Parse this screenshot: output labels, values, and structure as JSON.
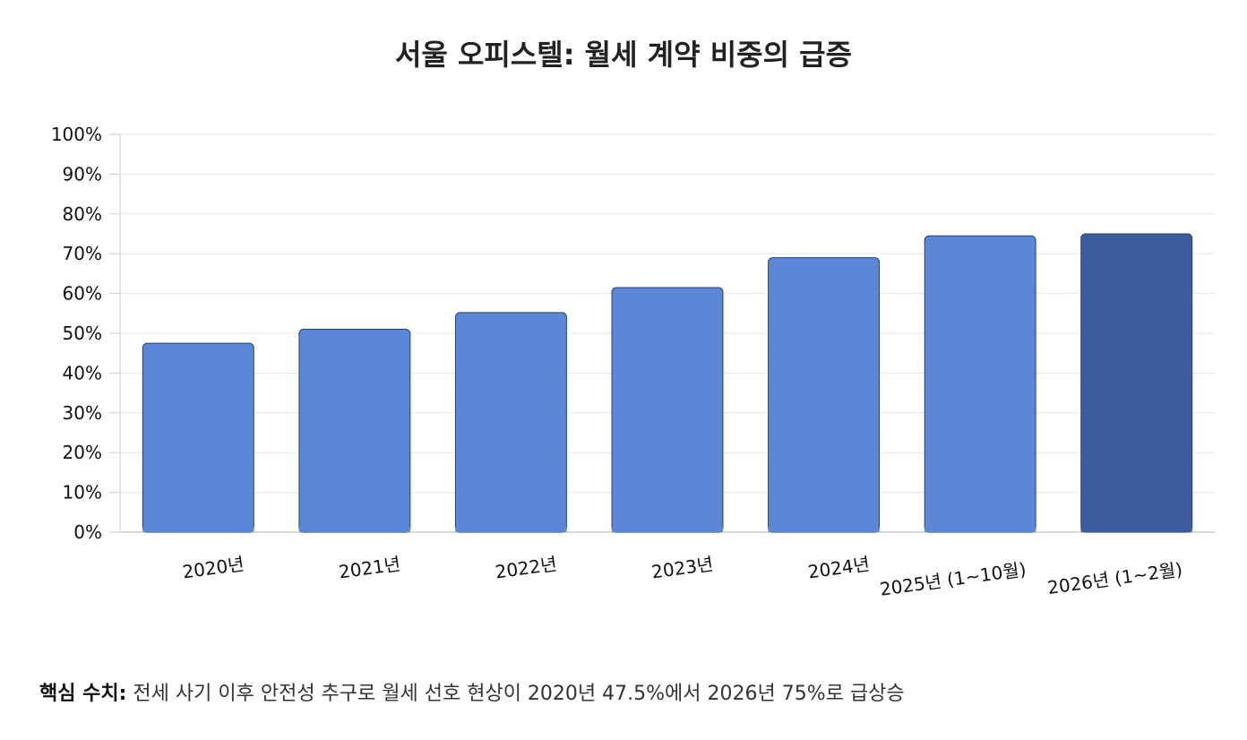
{
  "page": {
    "title": "서울 오피스텔: 월세 계약 비중의 급증"
  },
  "footer": {
    "label": "핵심 수치:",
    "text": "전세 사기 이후 안전성 추구로 월세 선호 현상이 2020년 47.5%에서 2026년 75%로 급상승"
  },
  "chart_data": {
    "type": "bar",
    "title": "서울 오피스텔: 월세 계약 비중의 급증",
    "xlabel": "",
    "ylabel": "",
    "categories": [
      "2020년",
      "2021년",
      "2022년",
      "2023년",
      "2024년",
      "2025년 (1~10월)",
      "2026년 (1~2월)"
    ],
    "values": [
      47.5,
      51,
      55.2,
      61.5,
      69,
      74.5,
      75
    ],
    "ylim": [
      0,
      100
    ],
    "yticks": [
      "0%",
      "10%",
      "20%",
      "30%",
      "40%",
      "50%",
      "60%",
      "70%",
      "80%",
      "90%",
      "100%"
    ],
    "grid": true,
    "legend": "none",
    "colors": {
      "bar": "#5b87d6",
      "highlight": "#3a5c9e",
      "bar_stroke": "#2b3f6e",
      "grid": "#e8e8e8",
      "axis": "#cccccc"
    },
    "highlight_index": 6
  }
}
